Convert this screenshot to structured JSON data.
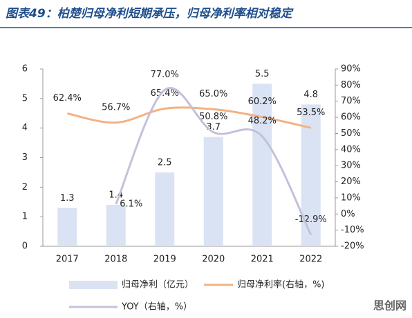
{
  "chart_data": {
    "type": "bar_line",
    "title": "图表49：柏楚归母净利短期承压，归母净利率相对稳定",
    "watermark": "思创网",
    "categories": [
      "2017",
      "2018",
      "2019",
      "2020",
      "2021",
      "2022"
    ],
    "series": [
      {
        "name": "归母净利（亿元）",
        "type": "bar",
        "color": "#dae3f3",
        "values": [
          1.3,
          1.4,
          2.5,
          3.7,
          5.5,
          4.8
        ]
      },
      {
        "name": "归母净利率(右轴，%)",
        "type": "line",
        "axis": "y2",
        "color": "#f4b183",
        "values": [
          62.4,
          56.7,
          65.4,
          65.0,
          60.2,
          53.5
        ],
        "value_labels": [
          "62.4%",
          "56.7%",
          "65.4%",
          "65.0%",
          "60.2%",
          "53.5%"
        ]
      },
      {
        "name": "YOY（右轴，%）",
        "type": "line",
        "axis": "y2",
        "color": "#c5c0da",
        "values": [
          null,
          6.1,
          77.0,
          50.8,
          48.2,
          -12.9
        ],
        "value_labels": [
          null,
          "6.1%",
          "77.0%",
          "50.8%",
          "48.2%",
          "-12.9%"
        ]
      }
    ],
    "ylim": [
      0,
      6
    ],
    "yticks": [
      0,
      1,
      2,
      3,
      4,
      5,
      6
    ],
    "y2lim": [
      -20,
      90
    ],
    "y2ticks": [
      {
        "value": -20,
        "label": "-20%"
      },
      {
        "value": -10,
        "label": "-10%"
      },
      {
        "value": 0,
        "label": "0%"
      },
      {
        "value": 10,
        "label": "10%"
      },
      {
        "value": 20,
        "label": "20%"
      },
      {
        "value": 30,
        "label": "30%"
      },
      {
        "value": 40,
        "label": "40%"
      },
      {
        "value": 50,
        "label": "50%"
      },
      {
        "value": 60,
        "label": "60%"
      },
      {
        "value": 70,
        "label": "70%"
      },
      {
        "value": 80,
        "label": "80%"
      },
      {
        "value": 90,
        "label": "90%"
      }
    ]
  }
}
